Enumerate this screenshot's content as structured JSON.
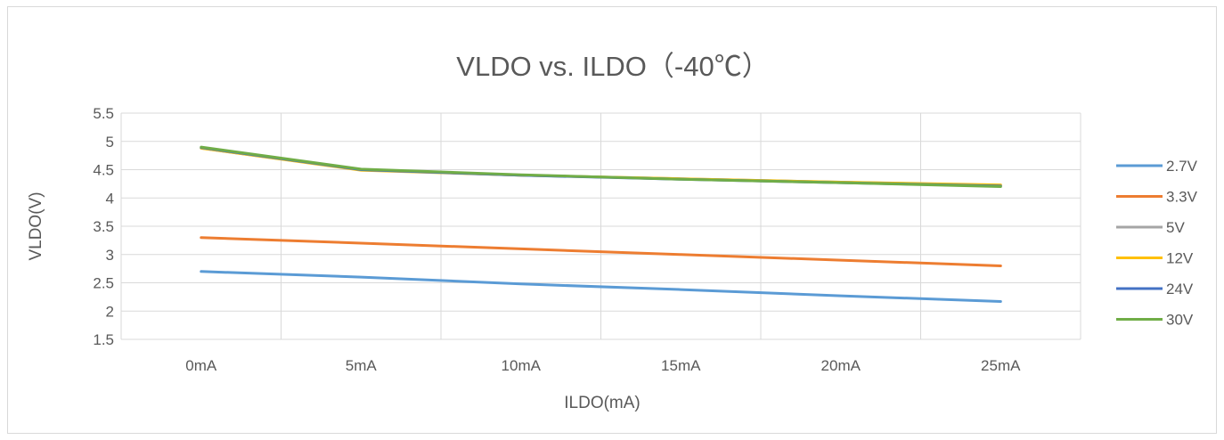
{
  "chart_data": {
    "type": "line",
    "title": "VLDO vs. ILDO（-40℃）",
    "xlabel": "ILDO(mA)",
    "ylabel": "VLDO(V)",
    "categories": [
      "0mA",
      "5mA",
      "10mA",
      "15mA",
      "20mA",
      "25mA"
    ],
    "ylim": [
      1.5,
      5.5
    ],
    "yticks": [
      "5.5",
      "5",
      "4.5",
      "4",
      "3.5",
      "3",
      "2.5",
      "2",
      "1.5"
    ],
    "grid": true,
    "legend_position": "right",
    "series": [
      {
        "name": "2.7V",
        "color": "#5b9bd5",
        "values": [
          2.7,
          2.6,
          2.48,
          2.38,
          2.27,
          2.17
        ]
      },
      {
        "name": "3.3V",
        "color": "#ed7d31",
        "values": [
          3.3,
          3.2,
          3.1,
          3.0,
          2.9,
          2.8
        ]
      },
      {
        "name": "5V",
        "color": "#a5a5a5",
        "values": [
          4.88,
          4.5,
          4.4,
          4.34,
          4.28,
          4.22
        ]
      },
      {
        "name": "12V",
        "color": "#ffc000",
        "values": [
          4.88,
          4.49,
          4.4,
          4.34,
          4.28,
          4.23
        ]
      },
      {
        "name": "24V",
        "color": "#4472c4",
        "values": [
          4.89,
          4.5,
          4.4,
          4.33,
          4.27,
          4.21
        ]
      },
      {
        "name": "30V",
        "color": "#70ad47",
        "values": [
          4.9,
          4.51,
          4.41,
          4.33,
          4.27,
          4.2
        ]
      }
    ]
  }
}
